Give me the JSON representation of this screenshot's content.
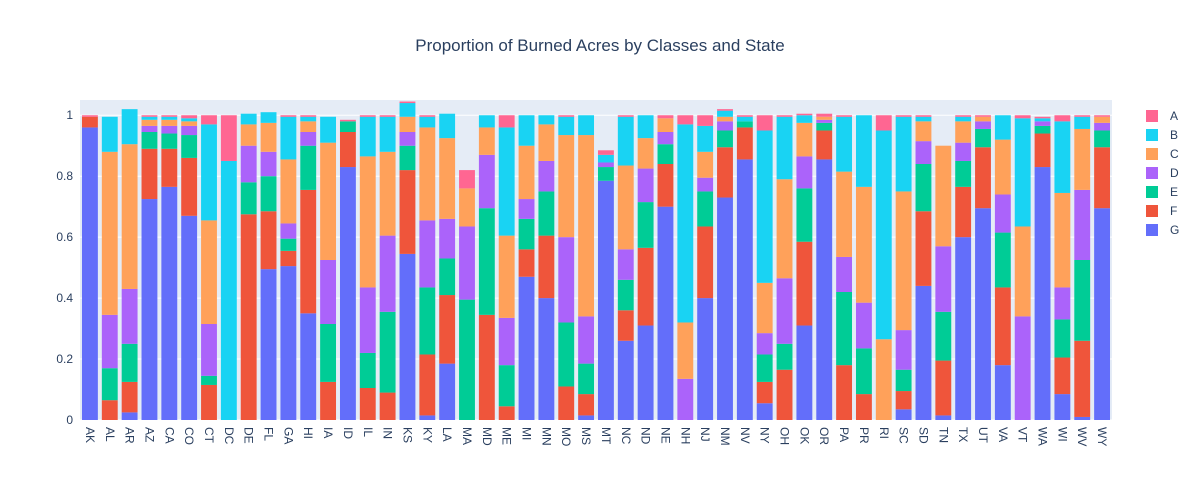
{
  "chart_data": {
    "type": "bar",
    "stacked": true,
    "title": "Proportion of Burned Acres by Classes and State",
    "xlabel": "",
    "ylabel": "",
    "ylim": [
      0,
      1.05
    ],
    "yticks": [
      "0",
      "0.2",
      "0.4",
      "0.6",
      "0.8",
      "1"
    ],
    "ytick_values": [
      0,
      0.2,
      0.4,
      0.6,
      0.8,
      1
    ],
    "grid": true,
    "legend_position": "right",
    "categories": [
      "AK",
      "AL",
      "AR",
      "AZ",
      "CA",
      "CO",
      "CT",
      "DC",
      "DE",
      "FL",
      "GA",
      "HI",
      "IA",
      "ID",
      "IL",
      "IN",
      "KS",
      "KY",
      "LA",
      "MA",
      "MD",
      "ME",
      "MI",
      "MN",
      "MO",
      "MS",
      "MT",
      "NC",
      "ND",
      "NE",
      "NH",
      "NJ",
      "NM",
      "NV",
      "NY",
      "OH",
      "OK",
      "OR",
      "PA",
      "PR",
      "RI",
      "SC",
      "SD",
      "TN",
      "TX",
      "UT",
      "VA",
      "VT",
      "WA",
      "WI",
      "WV",
      "WY"
    ],
    "series": [
      {
        "name": "G",
        "color": "#636efa",
        "values": [
          0.96,
          0.0,
          0.025,
          0.725,
          0.765,
          0.67,
          0.0,
          0.0,
          0.0,
          0.495,
          0.505,
          0.35,
          0.0,
          0.83,
          0.0,
          0.0,
          0.545,
          0.015,
          0.185,
          0.0,
          0.0,
          0.0,
          0.47,
          0.4,
          0.0,
          0.015,
          0.785,
          0.26,
          0.31,
          0.7,
          0.0,
          0.4,
          0.73,
          0.855,
          0.055,
          0.0,
          0.31,
          0.855,
          0.0,
          0.0,
          0.0,
          0.035,
          0.44,
          0.015,
          0.6,
          0.695,
          0.18,
          0.0,
          0.83,
          0.085,
          0.01,
          0.695
        ]
      },
      {
        "name": "F",
        "color": "#ef553b",
        "values": [
          0.035,
          0.065,
          0.1,
          0.165,
          0.125,
          0.19,
          0.115,
          0.0,
          0.675,
          0.19,
          0.05,
          0.405,
          0.125,
          0.115,
          0.105,
          0.09,
          0.275,
          0.2,
          0.225,
          0.0,
          0.345,
          0.045,
          0.09,
          0.205,
          0.11,
          0.07,
          0.0,
          0.1,
          0.255,
          0.14,
          0.0,
          0.235,
          0.165,
          0.105,
          0.07,
          0.165,
          0.275,
          0.095,
          0.18,
          0.085,
          0.0,
          0.06,
          0.245,
          0.18,
          0.165,
          0.2,
          0.255,
          0.0,
          0.11,
          0.12,
          0.25,
          0.2
        ]
      },
      {
        "name": "E",
        "color": "#00cc96",
        "values": [
          0.0,
          0.105,
          0.125,
          0.055,
          0.05,
          0.075,
          0.03,
          0.0,
          0.105,
          0.115,
          0.04,
          0.145,
          0.19,
          0.035,
          0.115,
          0.265,
          0.08,
          0.22,
          0.12,
          0.395,
          0.35,
          0.135,
          0.1,
          0.145,
          0.21,
          0.1,
          0.045,
          0.1,
          0.15,
          0.065,
          0.0,
          0.115,
          0.055,
          0.02,
          0.09,
          0.085,
          0.175,
          0.025,
          0.24,
          0.15,
          0.0,
          0.07,
          0.155,
          0.16,
          0.085,
          0.06,
          0.18,
          0.0,
          0.025,
          0.125,
          0.265,
          0.055
        ]
      },
      {
        "name": "D",
        "color": "#ab63fa",
        "values": [
          0.0,
          0.175,
          0.18,
          0.02,
          0.025,
          0.03,
          0.17,
          0.0,
          0.12,
          0.08,
          0.05,
          0.045,
          0.21,
          0.0,
          0.215,
          0.25,
          0.045,
          0.22,
          0.13,
          0.24,
          0.175,
          0.155,
          0.065,
          0.1,
          0.28,
          0.155,
          0.015,
          0.1,
          0.11,
          0.04,
          0.135,
          0.045,
          0.03,
          0.0,
          0.07,
          0.215,
          0.105,
          0.01,
          0.115,
          0.15,
          0.0,
          0.13,
          0.075,
          0.215,
          0.06,
          0.025,
          0.125,
          0.34,
          0.015,
          0.105,
          0.23,
          0.025
        ]
      },
      {
        "name": "C",
        "color": "#ffa15a",
        "values": [
          0.0,
          0.535,
          0.475,
          0.02,
          0.02,
          0.015,
          0.34,
          0.0,
          0.07,
          0.095,
          0.21,
          0.035,
          0.385,
          0.0,
          0.43,
          0.275,
          0.05,
          0.305,
          0.265,
          0.125,
          0.09,
          0.27,
          0.175,
          0.12,
          0.335,
          0.595,
          0.0,
          0.275,
          0.1,
          0.045,
          0.185,
          0.085,
          0.015,
          0.0,
          0.165,
          0.325,
          0.11,
          0.01,
          0.28,
          0.38,
          0.265,
          0.455,
          0.065,
          0.33,
          0.07,
          0.015,
          0.18,
          0.295,
          0.0,
          0.31,
          0.2,
          0.02
        ]
      },
      {
        "name": "B",
        "color": "#19d3f3",
        "values": [
          0.0,
          0.115,
          0.115,
          0.01,
          0.01,
          0.01,
          0.315,
          0.85,
          0.035,
          0.035,
          0.14,
          0.015,
          0.085,
          0.0,
          0.13,
          0.115,
          0.045,
          0.035,
          0.08,
          0.0,
          0.04,
          0.355,
          0.1,
          0.03,
          0.06,
          0.065,
          0.025,
          0.16,
          0.075,
          0.0,
          0.65,
          0.085,
          0.02,
          0.015,
          0.5,
          0.205,
          0.025,
          0.0,
          0.18,
          0.235,
          0.685,
          0.245,
          0.015,
          0.0,
          0.015,
          0.0,
          0.08,
          0.355,
          0.01,
          0.235,
          0.04,
          0.0
        ]
      },
      {
        "name": "A",
        "color": "#ff6692",
        "values": [
          0.005,
          0.0,
          0.0,
          0.005,
          0.005,
          0.01,
          0.03,
          0.15,
          0.0,
          0.0,
          0.005,
          0.005,
          0.0,
          0.005,
          0.005,
          0.005,
          0.005,
          0.005,
          0.0,
          0.06,
          0.0,
          0.04,
          0.0,
          0.0,
          0.005,
          0.0,
          0.015,
          0.005,
          0.0,
          0.01,
          0.03,
          0.035,
          0.005,
          0.005,
          0.05,
          0.005,
          0.005,
          0.01,
          0.005,
          0.0,
          0.05,
          0.005,
          0.005,
          0.0,
          0.005,
          0.005,
          0.0,
          0.01,
          0.005,
          0.02,
          0.005,
          0.005
        ]
      }
    ]
  },
  "legend": {
    "items": [
      {
        "name": "A",
        "color": "#ff6692"
      },
      {
        "name": "B",
        "color": "#19d3f3"
      },
      {
        "name": "C",
        "color": "#ffa15a"
      },
      {
        "name": "D",
        "color": "#ab63fa"
      },
      {
        "name": "E",
        "color": "#00cc96"
      },
      {
        "name": "F",
        "color": "#ef553b"
      },
      {
        "name": "G",
        "color": "#636efa"
      }
    ]
  },
  "colors": {
    "plot_background": "#e5ecf6",
    "grid": "#ffffff",
    "text": "#2a3f5f"
  }
}
